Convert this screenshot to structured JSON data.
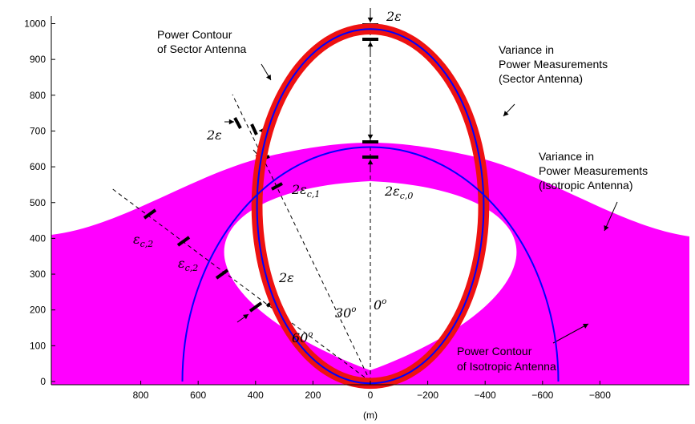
{
  "chart_data": {
    "type": "diagram",
    "xlabel": "(m)",
    "ylabel": "",
    "xlim": [
      900,
      -900
    ],
    "ylim": [
      0,
      1020
    ],
    "x_ticks": [
      800,
      600,
      400,
      200,
      0,
      -200,
      -400,
      -600,
      -800
    ],
    "x_tick_labels": [
      "800",
      "600",
      "400",
      "200",
      "0",
      "−200",
      "−400",
      "−600",
      "−800"
    ],
    "y_ticks": [
      0,
      100,
      200,
      300,
      400,
      500,
      600,
      700,
      800,
      900,
      1000
    ],
    "y_tick_labels": [
      "0",
      "100",
      "200",
      "300",
      "400",
      "500",
      "600",
      "700",
      "800",
      "900",
      "1000"
    ],
    "sector_contour": {
      "center": [
        0,
        490
      ],
      "semi_x": 395,
      "semi_y": 495,
      "band_width": 32
    },
    "isotropic_contour": {
      "center": [
        0,
        0
      ],
      "radius": 655,
      "band_top": 675,
      "band_bottom": 628
    },
    "ray_angles_deg": [
      0,
      30,
      60
    ],
    "colors": {
      "sector_band": "#ee1111",
      "isotropic_band": "#ff00ff",
      "contour": "#0000ff",
      "guide": "#000000"
    }
  },
  "labels": {
    "sector_contour": [
      "Power Contour",
      "of Sector Antenna"
    ],
    "sector_variance": [
      "Variance in",
      "Power Measurements",
      "(Sector Antenna)"
    ],
    "iso_variance": [
      "Variance in",
      "Power Measurements",
      "(Isotropic Antenna)"
    ],
    "iso_contour": [
      "Power Contour",
      "of Isotropic Antenna"
    ],
    "eps_top": "2ε",
    "eps_left": "2ε",
    "eps_bottom": "2ε",
    "eps_c0": "2ε",
    "eps_c0_sub": "c,0",
    "eps_c1": "2ε",
    "eps_c1_sub": "c,1",
    "eps_c2a": "ε",
    "eps_c2a_sub": "c,2",
    "eps_c2b": "ε",
    "eps_c2b_sub": "c,2",
    "angle_30": "30",
    "angle_0": "0",
    "angle_60": "60",
    "deg": "o"
  }
}
